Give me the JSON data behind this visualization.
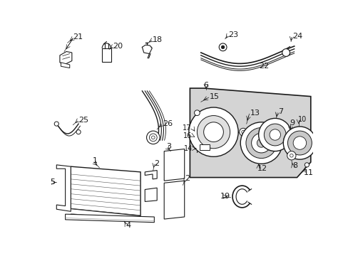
{
  "bg_color": "#ffffff",
  "line_color": "#1a1a1a",
  "box_fill": "#d4d4d4",
  "white": "#ffffff",
  "gray": "#aaaaaa",
  "figsize": [
    4.89,
    3.6
  ],
  "dpi": 100
}
